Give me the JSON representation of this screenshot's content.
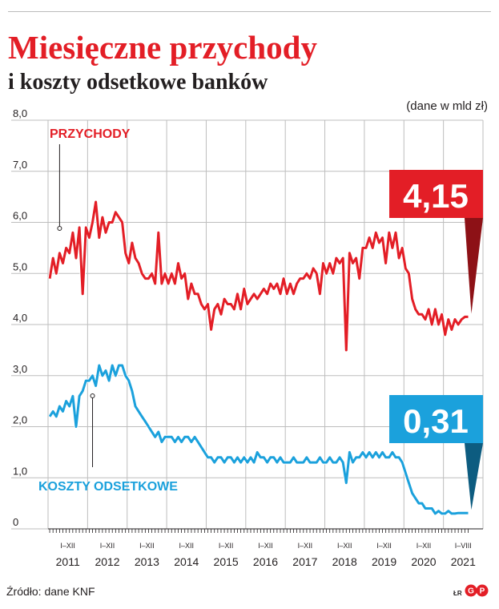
{
  "title": "Miesięczne przychody",
  "subtitle": "i koszty odsetkowe banków",
  "unit_label": "(dane w mld zł)",
  "source": "Źródło: dane KNF",
  "credit": "ŁR",
  "brand_icon": "dgp-logo-icon",
  "colors": {
    "income": "#e31e26",
    "cost": "#1ba1dc",
    "income_dark": "#8d1116",
    "cost_dark": "#0d5c80",
    "grid": "#bdbdbd"
  },
  "chart_data": {
    "type": "line",
    "title": "Miesięczne przychody i koszty odsetkowe banków",
    "ylabel": "(dane w mld zł)",
    "ylim": [
      0,
      8
    ],
    "yticks": [
      "0",
      "1,0",
      "2,0",
      "3,0",
      "4,0",
      "5,0",
      "6,0",
      "7,0",
      "8,0"
    ],
    "grid": true,
    "x_start": "2011-01",
    "x_end": "2021-08",
    "year_labels": [
      "2011",
      "2012",
      "2013",
      "2014",
      "2015",
      "2016",
      "2017",
      "2018",
      "2019",
      "2020",
      "2021"
    ],
    "period_labels": [
      "I–XII",
      "I–XII",
      "I–XII",
      "I–XII",
      "I–XII",
      "I–XII",
      "I–XII",
      "I–XII",
      "I–XII",
      "I–XII",
      "I–VIII"
    ],
    "series": [
      {
        "name": "PRZYCHODY",
        "final_value_label": "4,15",
        "values": [
          4.9,
          5.3,
          5.0,
          5.4,
          5.2,
          5.5,
          5.4,
          5.8,
          5.3,
          5.9,
          4.6,
          5.9,
          5.7,
          6.0,
          6.4,
          5.7,
          6.1,
          5.8,
          6.0,
          6.0,
          6.2,
          6.1,
          6.0,
          5.4,
          5.2,
          5.6,
          5.3,
          5.2,
          5.0,
          4.9,
          4.9,
          5.0,
          4.8,
          5.8,
          4.8,
          5.0,
          4.8,
          5.0,
          4.8,
          5.2,
          4.9,
          5.0,
          4.5,
          4.8,
          4.6,
          4.6,
          4.4,
          4.3,
          4.4,
          3.9,
          4.3,
          4.4,
          4.2,
          4.5,
          4.4,
          4.4,
          4.3,
          4.6,
          4.3,
          4.7,
          4.4,
          4.5,
          4.6,
          4.5,
          4.6,
          4.7,
          4.6,
          4.8,
          4.7,
          4.8,
          4.6,
          4.9,
          4.6,
          4.8,
          4.6,
          4.8,
          4.9,
          4.9,
          5.0,
          4.9,
          5.1,
          5.0,
          4.6,
          5.2,
          5.0,
          5.2,
          5.0,
          5.3,
          5.2,
          5.3,
          3.5,
          5.4,
          5.2,
          5.3,
          4.9,
          5.5,
          5.5,
          5.7,
          5.5,
          5.8,
          5.6,
          5.7,
          5.2,
          5.8,
          5.5,
          5.8,
          5.3,
          5.5,
          5.1,
          5.0,
          4.5,
          4.3,
          4.2,
          4.2,
          4.1,
          4.3,
          4.0,
          4.3,
          4.0,
          4.2,
          3.8,
          4.1,
          3.9,
          4.1,
          4.0,
          4.1,
          4.15,
          4.15
        ]
      },
      {
        "name": "KOSZTY ODSETKOWE",
        "final_value_label": "0,31",
        "values": [
          2.2,
          2.3,
          2.2,
          2.4,
          2.3,
          2.5,
          2.4,
          2.6,
          2.0,
          2.6,
          2.7,
          2.9,
          2.9,
          3.0,
          2.8,
          3.2,
          3.0,
          3.1,
          2.9,
          3.2,
          3.0,
          3.2,
          3.2,
          3.0,
          2.9,
          2.7,
          2.4,
          2.3,
          2.2,
          2.1,
          2.0,
          1.9,
          1.8,
          1.9,
          1.7,
          1.8,
          1.8,
          1.8,
          1.7,
          1.8,
          1.7,
          1.8,
          1.8,
          1.7,
          1.8,
          1.7,
          1.6,
          1.5,
          1.4,
          1.4,
          1.3,
          1.4,
          1.4,
          1.3,
          1.4,
          1.4,
          1.3,
          1.4,
          1.3,
          1.4,
          1.3,
          1.4,
          1.3,
          1.5,
          1.4,
          1.4,
          1.3,
          1.4,
          1.4,
          1.3,
          1.4,
          1.3,
          1.3,
          1.3,
          1.4,
          1.3,
          1.3,
          1.3,
          1.4,
          1.3,
          1.3,
          1.3,
          1.4,
          1.3,
          1.3,
          1.4,
          1.3,
          1.3,
          1.4,
          1.3,
          0.9,
          1.5,
          1.3,
          1.4,
          1.4,
          1.5,
          1.4,
          1.5,
          1.4,
          1.5,
          1.4,
          1.5,
          1.4,
          1.4,
          1.5,
          1.4,
          1.4,
          1.3,
          1.1,
          0.9,
          0.7,
          0.6,
          0.5,
          0.5,
          0.4,
          0.4,
          0.4,
          0.3,
          0.35,
          0.3,
          0.3,
          0.35,
          0.3,
          0.3,
          0.31,
          0.31,
          0.31,
          0.31
        ]
      }
    ]
  }
}
